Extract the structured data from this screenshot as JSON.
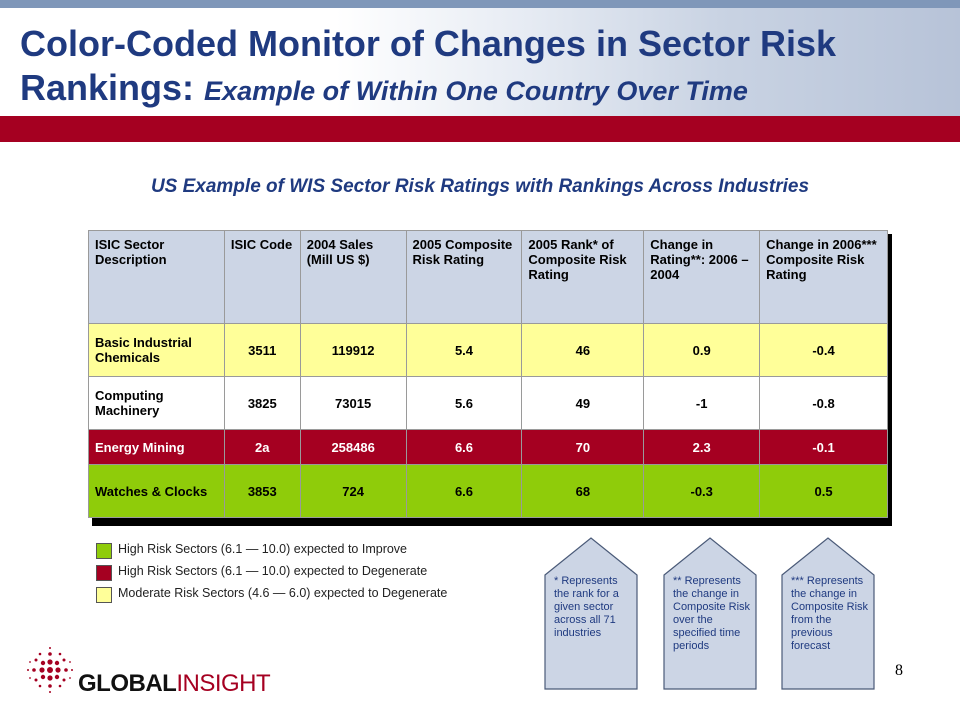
{
  "title": {
    "main": "Color-Coded Monitor of Changes in Sector Risk Rankings:",
    "italic": "Example of Within One Country Over Time"
  },
  "subtitle": "US Example of WIS Sector Risk Ratings with Rankings Across Industries",
  "table": {
    "headers": [
      "ISIC Sector Description",
      "ISIC Code",
      "2004 Sales (Mill US $)",
      "2005 Composite Risk Rating",
      "2005 Rank* of Composite Risk Rating",
      "Change in Rating**: 2006 – 2004",
      "Change in 2006*** Composite Risk Rating"
    ],
    "rows": [
      [
        "Basic Industrial Chemicals",
        "3511",
        "119912",
        "5.4",
        "46",
        "0.9",
        "-0.4"
      ],
      [
        "Computing Machinery",
        "3825",
        "73015",
        "5.6",
        "49",
        "-1",
        "-0.8"
      ],
      [
        "Energy Mining",
        "2a",
        "258486",
        "6.6",
        "70",
        "2.3",
        "-0.1"
      ],
      [
        "Watches & Clocks",
        "3853",
        "724",
        "6.6",
        "68",
        "-0.3",
        "0.5"
      ]
    ]
  },
  "legend": [
    {
      "text": "High Risk Sectors (6.1 — 10.0) expected to Improve",
      "color": "#8fcc0a"
    },
    {
      "text": "High Risk Sectors (6.1 — 10.0) expected to Degenerate",
      "color": "#a50021"
    },
    {
      "text": "Moderate Risk Sectors (4.6 — 6.0) expected to Degenerate",
      "color": "#ffff99"
    }
  ],
  "notes": [
    "* Represents the rank for a given sector across all 71 industries",
    "** Represents the change in Composite Risk over the specified time periods",
    "*** Represents the change in Composite Risk from the previous forecast"
  ],
  "logo": {
    "part1": "GLOBAL",
    "part2": "INSIGHT"
  },
  "page_number": "8",
  "colors": {
    "title_blue": "#1f3a80",
    "brand_red": "#a50021",
    "header_blue": "#ccd5e5"
  }
}
